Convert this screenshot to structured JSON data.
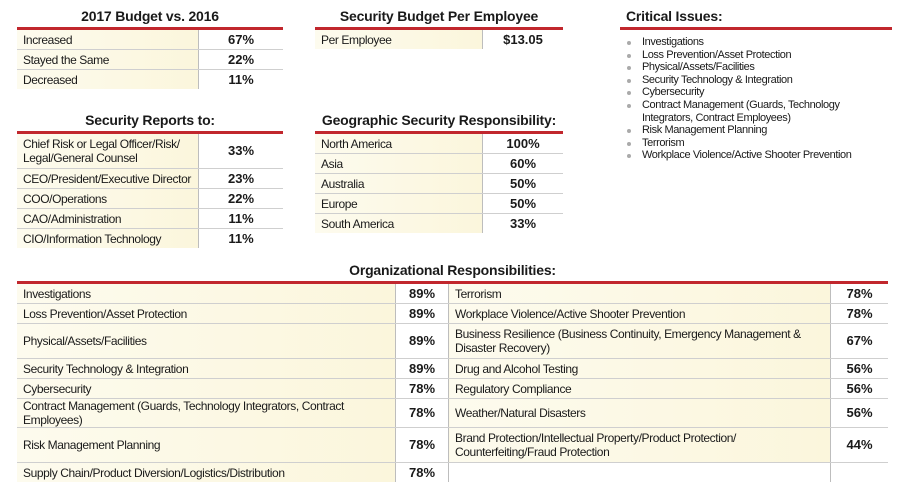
{
  "budget": {
    "title": "2017 Budget vs. 2016",
    "rows": [
      {
        "label": "Increased",
        "value": "67%"
      },
      {
        "label": "Stayed the Same",
        "value": "22%"
      },
      {
        "label": "Decreased",
        "value": "11%"
      }
    ]
  },
  "per_employee": {
    "title": "Security Budget Per Employee",
    "rows": [
      {
        "label": "Per Employee",
        "value": "$13.05"
      }
    ]
  },
  "critical": {
    "title": "Critical Issues:",
    "items": [
      "Investigations",
      "Loss Prevention/Asset Protection",
      "Physical/Assets/Facilities",
      "Security Technology & Integration",
      "Cybersecurity",
      "Contract Management (Guards, Technology Integrators, Contract Employees)",
      "Risk Management Planning",
      "Terrorism",
      "Workplace Violence/Active Shooter Prevention"
    ]
  },
  "reports": {
    "title": "Security Reports to:",
    "rows": [
      {
        "label": "Chief Risk or Legal Officer/Risk/ Legal/General Counsel",
        "value": "33%"
      },
      {
        "label": "CEO/President/Executive Director",
        "value": "23%"
      },
      {
        "label": "COO/Operations",
        "value": "22%"
      },
      {
        "label": "CAO/Administration",
        "value": "11%"
      },
      {
        "label": "CIO/Information Technology",
        "value": "11%"
      }
    ]
  },
  "geo": {
    "title": "Geographic Security Responsibility:",
    "rows": [
      {
        "label": "North America",
        "value": "100%"
      },
      {
        "label": "Asia",
        "value": "60%"
      },
      {
        "label": "Australia",
        "value": "50%"
      },
      {
        "label": "Europe",
        "value": "50%"
      },
      {
        "label": "South America",
        "value": "33%"
      }
    ]
  },
  "org": {
    "title": "Organizational Responsibilities:",
    "rows": [
      {
        "left": {
          "label": "Investigations",
          "value": "89%"
        },
        "right": {
          "label": "Terrorism",
          "value": "78%"
        }
      },
      {
        "left": {
          "label": "Loss Prevention/Asset Protection",
          "value": "89%"
        },
        "right": {
          "label": "Workplace Violence/Active Shooter Prevention",
          "value": "78%"
        }
      },
      {
        "left": {
          "label": "Physical/Assets/Facilities",
          "value": "89%"
        },
        "right": {
          "label": "Business Resilience (Business Continuity, Emergency Management & Disaster Recovery)",
          "value": "67%"
        }
      },
      {
        "left": {
          "label": "Security Technology & Integration",
          "value": "89%"
        },
        "right": {
          "label": "Drug and Alcohol Testing",
          "value": "56%"
        }
      },
      {
        "left": {
          "label": "Cybersecurity",
          "value": "78%"
        },
        "right": {
          "label": "Regulatory Compliance",
          "value": "56%"
        }
      },
      {
        "left": {
          "label": "Contract Management (Guards, Technology Integrators, Contract Employees)",
          "value": "78%"
        },
        "right": {
          "label": "Weather/Natural Disasters",
          "value": "56%"
        }
      },
      {
        "left": {
          "label": "Risk Management Planning",
          "value": "78%"
        },
        "right": {
          "label": "Brand Protection/Intellectual Property/Product Protection/ Counterfeiting/Fraud Protection",
          "value": "44%"
        }
      },
      {
        "left": {
          "label": "Supply Chain/Product Diversion/Logistics/Distribution",
          "value": "78%"
        },
        "right": null
      }
    ]
  }
}
